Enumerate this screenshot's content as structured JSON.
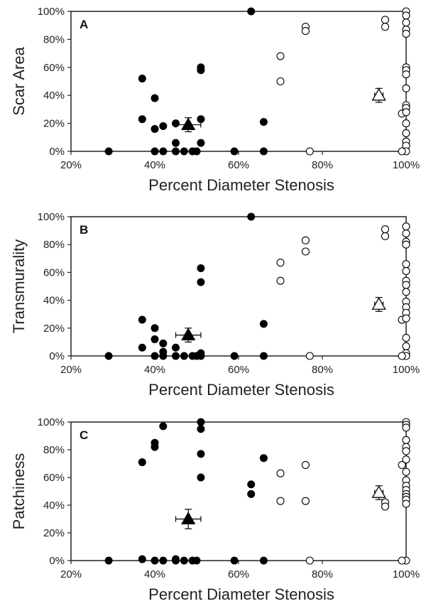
{
  "chart_data": [
    {
      "type": "scatter",
      "panel_label": "A",
      "xlabel": "Percent Diameter Stenosis",
      "ylabel": "Scar Area",
      "xlim": [
        0.2,
        1.0
      ],
      "ylim": [
        0,
        1.0
      ],
      "xticks": [
        "20%",
        "40%",
        "60%",
        "80%",
        "100%"
      ],
      "yticks": [
        "0%",
        "20%",
        "40%",
        "60%",
        "80%",
        "100%"
      ],
      "grid": false,
      "series": [
        {
          "marker": "filled-circle",
          "points": [
            [
              0.29,
              0
            ],
            [
              0.37,
              0.52
            ],
            [
              0.37,
              0.23
            ],
            [
              0.4,
              0.38
            ],
            [
              0.4,
              0.16
            ],
            [
              0.4,
              0
            ],
            [
              0.42,
              0.18
            ],
            [
              0.42,
              0
            ],
            [
              0.45,
              0.2
            ],
            [
              0.45,
              0.06
            ],
            [
              0.45,
              0
            ],
            [
              0.47,
              0
            ],
            [
              0.49,
              0
            ],
            [
              0.5,
              0
            ],
            [
              0.51,
              0.6
            ],
            [
              0.51,
              0.58
            ],
            [
              0.51,
              0.23
            ],
            [
              0.51,
              0.06
            ],
            [
              0.59,
              0
            ],
            [
              0.63,
              1.0
            ],
            [
              0.66,
              0.21
            ],
            [
              0.66,
              0
            ]
          ]
        },
        {
          "marker": "open-circle",
          "points": [
            [
              0.7,
              0.68
            ],
            [
              0.7,
              0.5
            ],
            [
              0.76,
              0.89
            ],
            [
              0.76,
              0.86
            ],
            [
              0.77,
              0
            ],
            [
              0.95,
              0.94
            ],
            [
              0.95,
              0.89
            ],
            [
              0.99,
              0.27
            ],
            [
              1.0,
              1.0
            ],
            [
              1.0,
              0.97
            ],
            [
              1.0,
              0.92
            ],
            [
              1.0,
              0.87
            ],
            [
              1.0,
              0.84
            ],
            [
              1.0,
              0.6
            ],
            [
              1.0,
              0.58
            ],
            [
              1.0,
              0.55
            ],
            [
              1.0,
              0.45
            ],
            [
              1.0,
              0.33
            ],
            [
              1.0,
              0.31
            ],
            [
              1.0,
              0.28
            ],
            [
              1.0,
              0.2
            ],
            [
              1.0,
              0.13
            ],
            [
              1.0,
              0.07
            ],
            [
              1.0,
              0.04
            ],
            [
              1.0,
              0
            ],
            [
              0.99,
              0
            ]
          ]
        },
        {
          "marker": "filled-triangle",
          "mean": [
            0.48,
            0.19
          ],
          "x_error": 0.03,
          "y_error": 0.05
        },
        {
          "marker": "open-triangle",
          "mean": [
            0.935,
            0.4
          ],
          "x_error": 0.01,
          "y_error": 0.05
        }
      ]
    },
    {
      "type": "scatter",
      "panel_label": "B",
      "xlabel": "Percent Diameter Stenosis",
      "ylabel": "Transmurality",
      "xlim": [
        0.2,
        1.0
      ],
      "ylim": [
        0,
        1.0
      ],
      "xticks": [
        "20%",
        "40%",
        "60%",
        "80%",
        "100%"
      ],
      "yticks": [
        "0%",
        "20%",
        "40%",
        "60%",
        "80%",
        "100%"
      ],
      "grid": false,
      "series": [
        {
          "marker": "filled-circle",
          "points": [
            [
              0.29,
              0
            ],
            [
              0.37,
              0.26
            ],
            [
              0.37,
              0.06
            ],
            [
              0.4,
              0.2
            ],
            [
              0.4,
              0.12
            ],
            [
              0.4,
              0
            ],
            [
              0.42,
              0.09
            ],
            [
              0.42,
              0.03
            ],
            [
              0.42,
              0
            ],
            [
              0.45,
              0.06
            ],
            [
              0.45,
              0
            ],
            [
              0.47,
              0
            ],
            [
              0.49,
              0
            ],
            [
              0.5,
              0
            ],
            [
              0.51,
              0.63
            ],
            [
              0.51,
              0.53
            ],
            [
              0.51,
              0.02
            ],
            [
              0.51,
              0
            ],
            [
              0.59,
              0
            ],
            [
              0.63,
              1.0
            ],
            [
              0.66,
              0.23
            ],
            [
              0.66,
              0
            ]
          ]
        },
        {
          "marker": "open-circle",
          "points": [
            [
              0.7,
              0.67
            ],
            [
              0.7,
              0.54
            ],
            [
              0.76,
              0.83
            ],
            [
              0.76,
              0.75
            ],
            [
              0.77,
              0
            ],
            [
              0.95,
              0.91
            ],
            [
              0.95,
              0.86
            ],
            [
              0.99,
              0.26
            ],
            [
              1.0,
              0.93
            ],
            [
              1.0,
              0.88
            ],
            [
              1.0,
              0.82
            ],
            [
              1.0,
              0.8
            ],
            [
              1.0,
              0.66
            ],
            [
              1.0,
              0.61
            ],
            [
              1.0,
              0.54
            ],
            [
              1.0,
              0.51
            ],
            [
              1.0,
              0.46
            ],
            [
              1.0,
              0.39
            ],
            [
              1.0,
              0.35
            ],
            [
              1.0,
              0.31
            ],
            [
              1.0,
              0.27
            ],
            [
              1.0,
              0.13
            ],
            [
              1.0,
              0.07
            ],
            [
              1.0,
              0.02
            ],
            [
              1.0,
              0
            ],
            [
              0.99,
              0
            ]
          ]
        },
        {
          "marker": "filled-triangle",
          "mean": [
            0.48,
            0.15
          ],
          "x_error": 0.03,
          "y_error": 0.05
        },
        {
          "marker": "open-triangle",
          "mean": [
            0.935,
            0.37
          ],
          "x_error": 0.01,
          "y_error": 0.05
        }
      ]
    },
    {
      "type": "scatter",
      "panel_label": "C",
      "xlabel": "Percent Diameter Stenosis",
      "ylabel": "Patchiness",
      "xlim": [
        0.2,
        1.0
      ],
      "ylim": [
        0,
        1.0
      ],
      "xticks": [
        "20%",
        "40%",
        "60%",
        "80%",
        "100%"
      ],
      "yticks": [
        "0%",
        "20%",
        "40%",
        "60%",
        "80%",
        "100%"
      ],
      "grid": false,
      "series": [
        {
          "marker": "filled-circle",
          "points": [
            [
              0.29,
              0
            ],
            [
              0.37,
              0.71
            ],
            [
              0.37,
              0.01
            ],
            [
              0.4,
              0.85
            ],
            [
              0.4,
              0.82
            ],
            [
              0.4,
              0
            ],
            [
              0.42,
              0.97
            ],
            [
              0.42,
              0
            ],
            [
              0.45,
              0.01
            ],
            [
              0.45,
              0
            ],
            [
              0.47,
              0
            ],
            [
              0.49,
              0
            ],
            [
              0.5,
              0
            ],
            [
              0.51,
              1.0
            ],
            [
              0.51,
              0.95
            ],
            [
              0.51,
              0.77
            ],
            [
              0.51,
              0.6
            ],
            [
              0.59,
              0
            ],
            [
              0.63,
              0.55
            ],
            [
              0.63,
              0.48
            ],
            [
              0.66,
              0.74
            ],
            [
              0.66,
              0
            ]
          ]
        },
        {
          "marker": "open-circle",
          "points": [
            [
              0.7,
              0.63
            ],
            [
              0.7,
              0.43
            ],
            [
              0.76,
              0.69
            ],
            [
              0.76,
              0.43
            ],
            [
              0.77,
              0
            ],
            [
              0.95,
              0.42
            ],
            [
              0.95,
              0.39
            ],
            [
              0.99,
              0.69
            ],
            [
              1.0,
              1.0
            ],
            [
              1.0,
              0.98
            ],
            [
              1.0,
              0.96
            ],
            [
              1.0,
              0.87
            ],
            [
              1.0,
              0.82
            ],
            [
              1.0,
              0.79
            ],
            [
              1.0,
              0.73
            ],
            [
              1.0,
              0.64
            ],
            [
              1.0,
              0.58
            ],
            [
              1.0,
              0.54
            ],
            [
              1.0,
              0.51
            ],
            [
              1.0,
              0.48
            ],
            [
              1.0,
              0.46
            ],
            [
              1.0,
              0.44
            ],
            [
              1.0,
              0.41
            ],
            [
              1.0,
              0
            ],
            [
              0.99,
              0
            ]
          ]
        },
        {
          "marker": "filled-triangle",
          "mean": [
            0.48,
            0.3
          ],
          "x_error": 0.03,
          "y_error": 0.07
        },
        {
          "marker": "open-triangle",
          "mean": [
            0.935,
            0.49
          ],
          "x_error": 0.01,
          "y_error": 0.05
        }
      ]
    }
  ]
}
